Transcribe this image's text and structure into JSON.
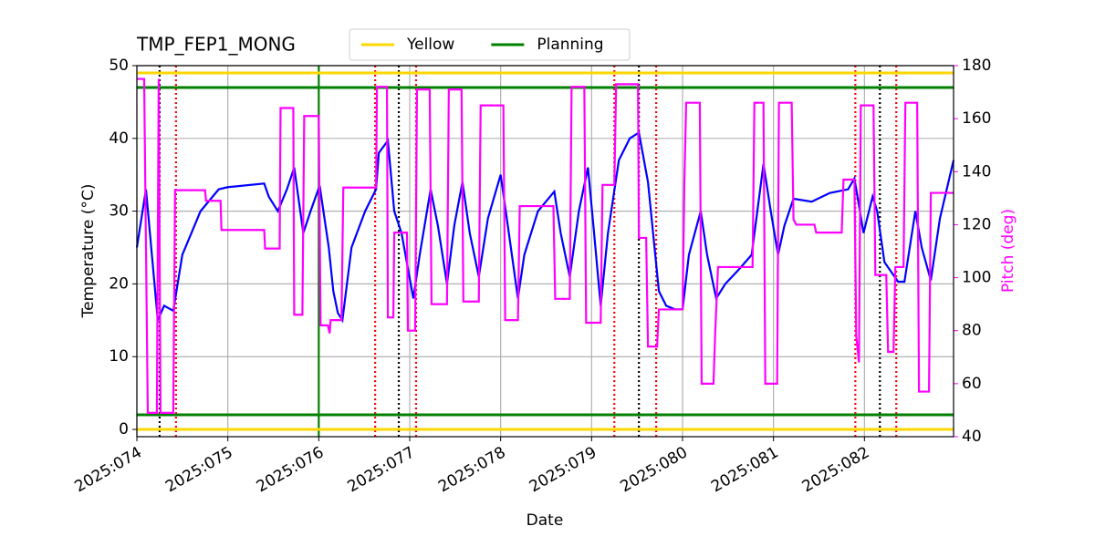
{
  "chart_data": {
    "type": "line",
    "title": "TMP_FEP1_MONG",
    "xlabel": "Date",
    "ylabel": "Temperature (°C)",
    "y2label": "Pitch (deg)",
    "xlim": [
      74,
      82.98
    ],
    "ylim": [
      -1,
      50
    ],
    "y2lim": [
      40,
      180
    ],
    "xticks": [
      {
        "value": 74,
        "label": "2025:074"
      },
      {
        "value": 75,
        "label": "2025:075"
      },
      {
        "value": 76,
        "label": "2025:076"
      },
      {
        "value": 77,
        "label": "2025:077"
      },
      {
        "value": 78,
        "label": "2025:078"
      },
      {
        "value": 79,
        "label": "2025:079"
      },
      {
        "value": 80,
        "label": "2025:080"
      },
      {
        "value": 81,
        "label": "2025:081"
      },
      {
        "value": 82,
        "label": "2025:082"
      }
    ],
    "yticks": [
      0,
      10,
      20,
      30,
      40,
      50
    ],
    "y2ticks": [
      40,
      60,
      80,
      100,
      120,
      140,
      160,
      180
    ],
    "y2color": "#ff00ff",
    "grid": true,
    "legend": "top",
    "hlines": [
      {
        "name": "Yellow",
        "color": "#ffd700",
        "values": [
          0,
          49
        ]
      },
      {
        "name": "Planning",
        "color": "#008000",
        "values": [
          2,
          47
        ]
      }
    ],
    "vlines": [
      {
        "color": "#008000",
        "style": "solid",
        "x": [
          76
        ]
      },
      {
        "color": "#000000",
        "style": "dotted",
        "x": [
          74.25,
          76.88,
          79.52,
          82.17
        ]
      },
      {
        "color": "#ff0000",
        "style": "dotted",
        "x": [
          74.43,
          76.62,
          77.07,
          79.25,
          79.71,
          81.9,
          82.35
        ]
      }
    ],
    "series": [
      {
        "color": "#0000ff",
        "x": [
          74.0,
          74.1,
          74.23,
          74.3,
          74.4,
          74.5,
          74.7,
          74.9,
          75.0,
          75.4,
          75.45,
          75.55,
          75.65,
          75.73,
          75.83,
          75.91,
          76.01,
          76.11,
          76.16,
          76.21,
          76.26,
          76.36,
          76.51,
          76.63,
          76.66,
          76.76,
          76.83,
          76.91,
          77.04,
          77.11,
          77.23,
          77.31,
          77.41,
          77.49,
          77.58,
          77.66,
          77.76,
          77.86,
          78.0,
          78.09,
          78.19,
          78.26,
          78.41,
          78.59,
          78.66,
          78.76,
          78.86,
          78.96,
          79.02,
          79.1,
          79.18,
          79.3,
          79.42,
          79.52,
          79.62,
          79.74,
          79.82,
          79.92,
          80.0,
          80.07,
          80.2,
          80.27,
          80.37,
          80.47,
          80.62,
          80.76,
          80.89,
          80.97,
          81.05,
          81.12,
          81.22,
          81.42,
          81.62,
          81.82,
          81.89,
          81.99,
          82.09,
          82.14,
          82.22,
          82.37,
          82.44,
          82.56,
          82.63,
          82.73,
          82.83,
          82.98
        ],
        "values": [
          25,
          33,
          15,
          17,
          16.3,
          24,
          30,
          33,
          33.3,
          33.8,
          32,
          30,
          33,
          36,
          27,
          30,
          33.5,
          25,
          19,
          16,
          15,
          25,
          30,
          33,
          38,
          39.7,
          30,
          27,
          18,
          24,
          33,
          28,
          20,
          28,
          34,
          27,
          21,
          29,
          35,
          27,
          18,
          24,
          30,
          32.7,
          27,
          21,
          30,
          36,
          28,
          17,
          27,
          37,
          40,
          40.8,
          34,
          19,
          17,
          16.5,
          16.5,
          24,
          30,
          24,
          18,
          20,
          22,
          24,
          36.5,
          30,
          24,
          28,
          31.7,
          31.3,
          32.5,
          33,
          34.5,
          27,
          32,
          30,
          23,
          20.3,
          20.3,
          30,
          25,
          20.5,
          29,
          37
        ]
      },
      {
        "color": "#ff00ff",
        "axis": "y2",
        "x": [
          74.0,
          74.08,
          74.12,
          74.22,
          74.24,
          74.26,
          74.4,
          74.42,
          74.75,
          74.76,
          74.92,
          74.93,
          75.4,
          75.41,
          75.57,
          75.58,
          75.72,
          75.73,
          75.82,
          75.84,
          76.0,
          76.02,
          76.1,
          76.12,
          76.13,
          76.25,
          76.27,
          76.63,
          76.64,
          76.75,
          76.76,
          76.82,
          76.83,
          76.97,
          76.98,
          77.06,
          77.08,
          77.22,
          77.24,
          77.41,
          77.43,
          77.57,
          77.59,
          77.76,
          77.78,
          78.03,
          78.05,
          78.19,
          78.21,
          78.58,
          78.6,
          78.76,
          78.78,
          78.92,
          78.94,
          79.1,
          79.12,
          79.25,
          79.27,
          79.51,
          79.52,
          79.6,
          79.62,
          79.72,
          79.74,
          80.0,
          80.02,
          80.04,
          80.19,
          80.21,
          80.34,
          80.36,
          80.39,
          80.77,
          80.79,
          80.89,
          80.91,
          81.04,
          81.06,
          81.2,
          81.22,
          81.25,
          81.45,
          81.47,
          81.75,
          81.77,
          81.89,
          81.91,
          81.94,
          81.96,
          82.1,
          82.12,
          82.24,
          82.26,
          82.32,
          82.34,
          82.43,
          82.45,
          82.58,
          82.6,
          82.71,
          82.73,
          82.98
        ],
        "values": [
          175,
          175,
          49,
          49,
          175,
          49,
          49,
          133,
          133,
          129,
          129,
          118,
          118,
          111,
          111,
          164,
          164,
          86,
          86,
          161,
          161,
          82,
          82,
          79,
          84,
          84,
          134,
          134,
          172,
          172,
          85,
          85,
          117,
          117,
          80,
          80,
          171,
          171,
          90,
          90,
          171,
          171,
          91,
          91,
          165,
          165,
          84,
          84,
          127,
          127,
          92,
          92,
          172,
          172,
          83,
          83,
          135,
          135,
          173,
          173,
          115,
          115,
          74,
          74,
          88,
          88,
          136,
          166,
          166,
          60,
          60,
          80,
          104,
          104,
          166,
          166,
          60,
          60,
          166,
          166,
          122,
          120,
          120,
          117,
          117,
          137,
          137,
          78,
          68,
          165,
          165,
          101,
          101,
          72,
          72,
          104,
          104,
          166,
          166,
          57,
          57,
          132,
          132
        ]
      }
    ]
  }
}
